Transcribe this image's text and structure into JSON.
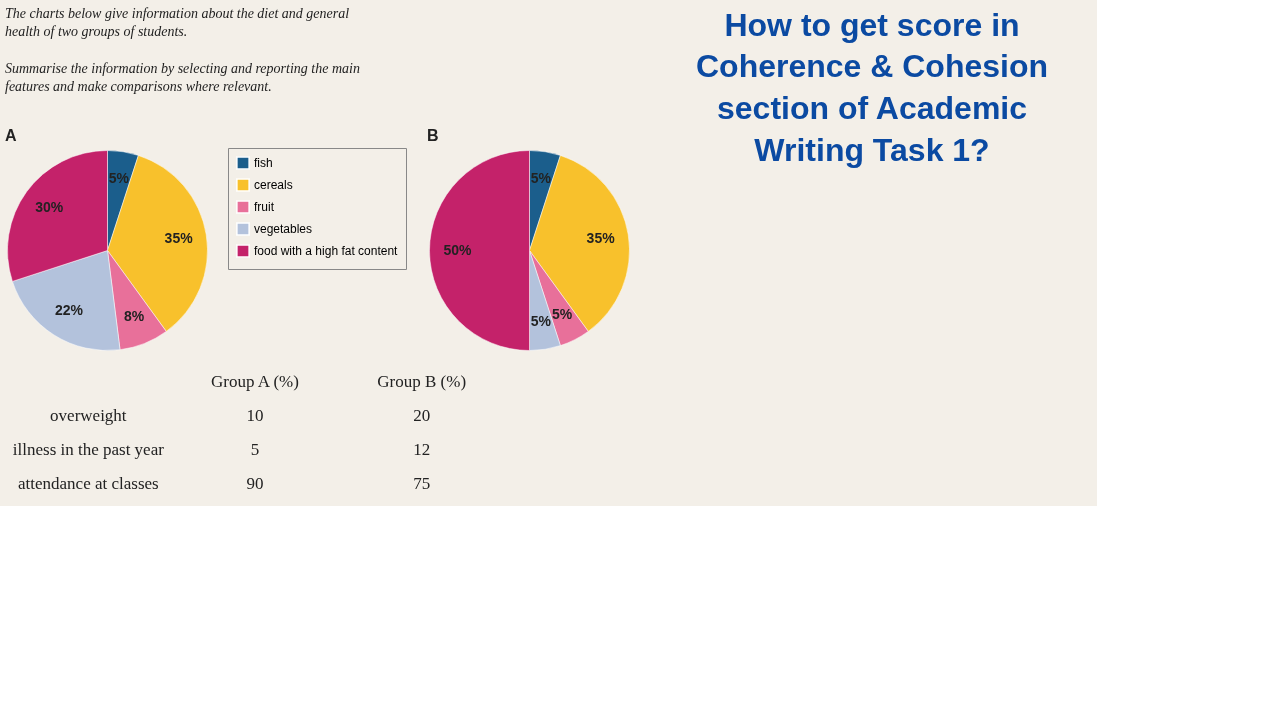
{
  "chart_data": [
    {
      "type": "other",
      "title": "The charts below give information about the diet and general health of two groups of students.",
      "subtitle": "Summarise the information by selecting and reporting the main features and make comparisons where relevant."
    },
    {
      "type": "pie",
      "title": "A",
      "categories": [
        "fish",
        "cereals",
        "fruit",
        "vegetables",
        "food with a high fat content"
      ],
      "values": [
        5,
        35,
        8,
        22,
        30
      ],
      "colors": [
        "#1b5e8c",
        "#f8c12c",
        "#e8709a",
        "#b3c2dc",
        "#c4226a"
      ],
      "value_labels": [
        "5%",
        "35%",
        "8%",
        "22%",
        "30%"
      ],
      "legend": "right"
    },
    {
      "type": "pie",
      "title": "B",
      "categories": [
        null,
        null,
        null,
        null,
        null
      ],
      "values": [
        5,
        35,
        5,
        5,
        50
      ],
      "colors": [
        "#1b5e8c",
        "#f8c12c",
        "#e8709a",
        "#b3c2dc",
        "#c4226a"
      ],
      "value_labels": [
        "5%",
        "35%",
        "5%",
        "5%",
        "50%"
      ],
      "legend": false
    },
    {
      "type": "other",
      "categories": [
        "overweight",
        "illness in the past year",
        "attendance at classes"
      ],
      "series": [
        {
          "name": "Group A (%)",
          "values": [
            10,
            5,
            90
          ]
        },
        {
          "name": "Group B (%)",
          "values": [
            20,
            12,
            75
          ]
        }
      ],
      "data_labels": true
    },
    {
      "type": "other",
      "title": "How to get score in Coherence & Cohesion section of Academic Writing Task 1?"
    }
  ]
}
